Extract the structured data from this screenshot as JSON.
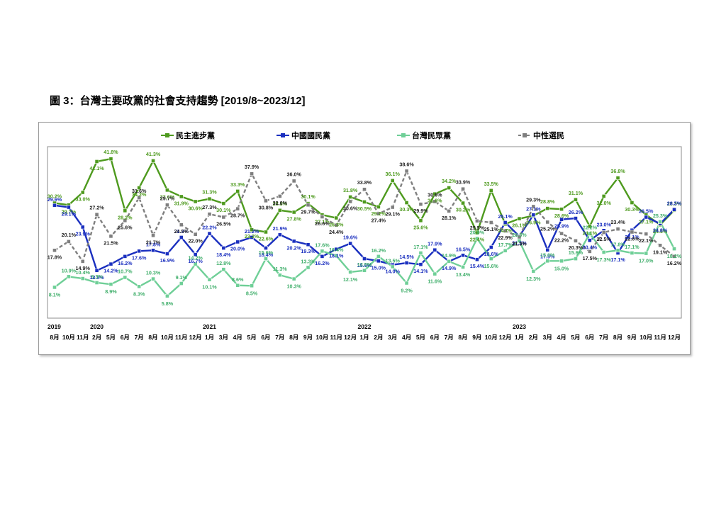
{
  "figure": {
    "title": "圖 3：台灣主要政黨的社會支持趨勢 [2019/8~2023/12]"
  },
  "chart_data": {
    "type": "line",
    "title": "",
    "legend_position": "top",
    "grid": false,
    "ylim": [
      0,
      45
    ],
    "x": [
      "8月",
      "10月",
      "11月",
      "2月",
      "5月",
      "6月",
      "7月",
      "8月",
      "10月",
      "11月",
      "12月",
      "1月",
      "3月",
      "4月",
      "5月",
      "6月",
      "7月",
      "8月",
      "9月",
      "10月",
      "11月",
      "12月",
      "1月",
      "2月",
      "3月",
      "4月",
      "5月",
      "6月",
      "7月",
      "8月",
      "9月",
      "10月",
      "12月",
      "1月",
      "2月",
      "3月",
      "4月",
      "5月",
      "6月",
      "7月",
      "8月",
      "9月",
      "10月",
      "11月",
      "12月"
    ],
    "year_labels": [
      {
        "index": 0,
        "label": "2019"
      },
      {
        "index": 3,
        "label": "2020"
      },
      {
        "index": 11,
        "label": "2021"
      },
      {
        "index": 22,
        "label": "2022"
      },
      {
        "index": 33,
        "label": "2023"
      }
    ],
    "series": [
      {
        "name": "民主進步黨",
        "color": "#4e9a1e",
        "label_color": "#4e9a1e",
        "marker": "square",
        "values": [
          30.2,
          29.7,
          33.0,
          41.1,
          41.8,
          28.2,
          34.2,
          41.3,
          33.6,
          31.9,
          30.6,
          31.3,
          30.1,
          33.3,
          23.2,
          22.6,
          28.3,
          27.8,
          30.1,
          27.1,
          26.3,
          31.8,
          30.5,
          29.2,
          36.1,
          30.3,
          25.6,
          32.6,
          34.2,
          30.2,
          22.4,
          33.5,
          24.7,
          26.1,
          26.9,
          28.8,
          28.6,
          31.1,
          24.1,
          32.0,
          36.8,
          30.3,
          27.1,
          24.5,
          28.3
        ]
      },
      {
        "name": "中國國民黨",
        "color": "#1a2fbf",
        "label_color": "#1a2fbf",
        "marker": "square",
        "values": [
          29.6,
          29.1,
          23.9,
          12.5,
          14.2,
          16.2,
          17.6,
          17.8,
          16.9,
          21.2,
          16.7,
          22.2,
          18.4,
          20.0,
          21.2,
          18.4,
          21.9,
          20.2,
          19.3,
          16.2,
          18.1,
          19.6,
          15.6,
          15.0,
          14.0,
          14.5,
          14.1,
          17.9,
          14.9,
          16.5,
          15.4,
          18.6,
          25.1,
          21.5,
          27.1,
          17.9,
          25.9,
          26.2,
          20.4,
          23.0,
          17.1,
          23.1,
          26.5,
          24.8,
          28.5
        ]
      },
      {
        "name": "台灣民眾黨",
        "color": "#6fcf97",
        "label_color": "#3fae6a",
        "marker": "square",
        "values": [
          8.1,
          10.9,
          10.4,
          9.3,
          8.9,
          10.7,
          8.3,
          10.3,
          5.8,
          9.1,
          14.2,
          10.1,
          12.8,
          8.6,
          8.5,
          15.6,
          11.3,
          10.3,
          13.3,
          17.6,
          16.4,
          12.1,
          12.5,
          16.2,
          13.5,
          9.2,
          17.1,
          11.6,
          14.9,
          13.4,
          20.9,
          15.6,
          17.7,
          20.3,
          12.3,
          15.0,
          15.0,
          15.6,
          22.2,
          17.3,
          17.8,
          17.1,
          17.0,
          25.3,
          18.2
        ]
      },
      {
        "name": "中性選民",
        "color": "#7f7f7f",
        "label_color": "#222222",
        "marker": "square",
        "dashed": true,
        "values": [
          17.8,
          20.1,
          14.9,
          27.2,
          21.5,
          25.6,
          31.6,
          21.7,
          29.7,
          24.5,
          22.0,
          27.3,
          26.5,
          28.7,
          37.9,
          30.8,
          32.0,
          36.0,
          29.7,
          26.6,
          24.4,
          30.6,
          33.8,
          27.4,
          29.1,
          38.6,
          29.9,
          30.6,
          28.1,
          33.9,
          25.5,
          25.1,
          22.9,
          21.3,
          29.3,
          25.2,
          22.2,
          20.3,
          17.5,
          22.5,
          23.4,
          22.6,
          22.1,
          19.1,
          16.2
        ]
      }
    ]
  }
}
